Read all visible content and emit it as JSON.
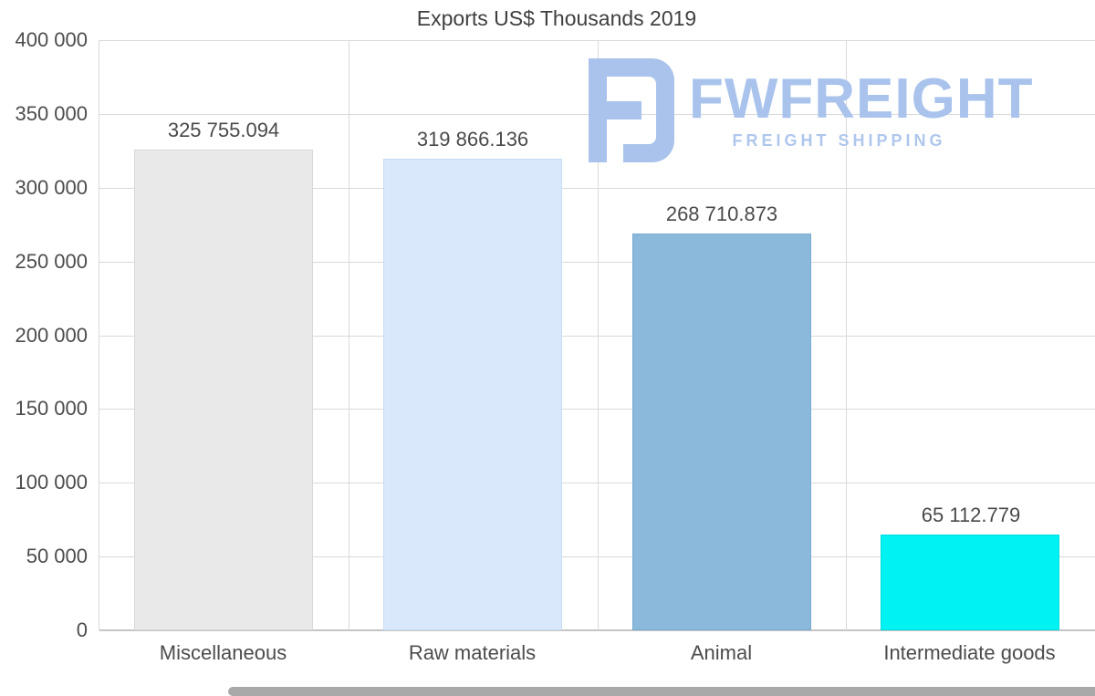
{
  "chart_data": {
    "type": "bar",
    "title": "Exports US$ Thousands 2019",
    "categories": [
      "Miscellaneous",
      "Raw materials",
      "Animal",
      "Intermediate goods"
    ],
    "values": [
      325755.094,
      319866.136,
      268710.873,
      65112.779
    ],
    "value_labels": [
      "325 755.094",
      "319 866.136",
      "268 710.873",
      "65 112.779"
    ],
    "bar_colors": [
      "#e9e9e9",
      "#d9e9fb",
      "#8bb9dc",
      "#00f2f2"
    ],
    "bar_border_colors": [
      "#d8d8d8",
      "#c6ddf4",
      "#79abd0",
      "#00dcdc"
    ],
    "xlabel": "",
    "ylabel": "",
    "ylim": [
      0,
      400000
    ],
    "ytick_step": 50000,
    "ytick_labels": [
      "0",
      "50 000",
      "100 000",
      "150 000",
      "200 000",
      "250 000",
      "300 000",
      "350 000",
      "400 000"
    ],
    "grid": true,
    "legend": false
  },
  "watermark": {
    "brand": "FWFREIGHT",
    "tagline": "FREIGHT SHIPPING",
    "color": "#a9c3ec"
  }
}
